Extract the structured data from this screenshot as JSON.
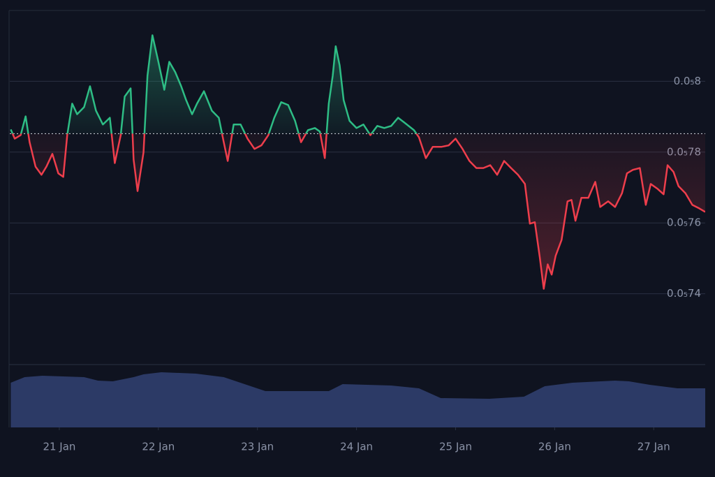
{
  "chart_data": {
    "type": "line",
    "up_color": "#2ebd85",
    "down_color": "#ee3e4c",
    "baseline": 7.852e-06,
    "grid": true,
    "xlim": [
      20.5,
      27.52
    ],
    "ylim": [
      7.2e-06,
      8.2e-06
    ],
    "xticks": [
      {
        "value": 21,
        "label": "21 Jan"
      },
      {
        "value": 22,
        "label": "22 Jan"
      },
      {
        "value": 23,
        "label": "23 Jan"
      },
      {
        "value": 24,
        "label": "24 Jan"
      },
      {
        "value": 25,
        "label": "25 Jan"
      },
      {
        "value": 26,
        "label": "26 Jan"
      },
      {
        "value": 27,
        "label": "27 Jan"
      }
    ],
    "yticks": [
      {
        "value": 8e-06,
        "label": "0.0₅8"
      },
      {
        "value": 7.8e-06,
        "label": "0.0₅78"
      },
      {
        "value": 7.6e-06,
        "label": "0.0₅76"
      },
      {
        "value": 7.4e-06,
        "label": "0.0₅74"
      }
    ],
    "x": [
      20.51,
      20.55,
      20.61,
      20.66,
      20.7,
      20.76,
      20.82,
      20.87,
      20.93,
      20.99,
      21.04,
      21.08,
      21.13,
      21.18,
      21.25,
      21.31,
      21.37,
      21.44,
      21.51,
      21.56,
      21.62,
      21.66,
      21.72,
      21.75,
      21.79,
      21.85,
      21.89,
      21.94,
      22.0,
      22.06,
      22.11,
      22.17,
      22.23,
      22.28,
      22.34,
      22.39,
      22.46,
      22.54,
      22.61,
      22.66,
      22.7,
      22.76,
      22.83,
      22.9,
      22.97,
      23.04,
      23.11,
      23.17,
      23.24,
      23.31,
      23.38,
      23.44,
      23.51,
      23.58,
      23.63,
      23.68,
      23.72,
      23.76,
      23.79,
      23.83,
      23.87,
      23.93,
      24.0,
      24.07,
      24.14,
      24.21,
      24.28,
      24.35,
      24.42,
      24.49,
      24.58,
      24.63,
      24.7,
      24.77,
      24.86,
      24.93,
      25.0,
      25.07,
      25.14,
      25.21,
      25.28,
      25.35,
      25.42,
      25.49,
      25.56,
      25.63,
      25.7,
      25.75,
      25.8,
      25.85,
      25.89,
      25.93,
      25.97,
      26.01,
      26.07,
      26.13,
      26.17,
      26.21,
      26.27,
      26.34,
      26.41,
      26.46,
      26.54,
      26.61,
      26.68,
      26.73,
      26.79,
      26.86,
      26.92,
      26.97,
      27.04,
      27.1,
      27.14,
      27.2,
      27.25,
      27.32,
      27.39,
      27.46,
      27.52
    ],
    "values": [
      7.864e-06,
      7.838e-06,
      7.848e-06,
      7.901e-06,
      7.828e-06,
      7.759e-06,
      7.736e-06,
      7.759e-06,
      7.795e-06,
      7.74e-06,
      7.73e-06,
      7.848e-06,
      7.937e-06,
      7.907e-06,
      7.927e-06,
      7.986e-06,
      7.917e-06,
      7.878e-06,
      7.897e-06,
      7.769e-06,
      7.848e-06,
      7.957e-06,
      7.98e-06,
      7.779e-06,
      7.69e-06,
      7.799e-06,
      8.016e-06,
      8.13e-06,
      8.055e-06,
      7.976e-06,
      8.055e-06,
      8.026e-06,
      7.986e-06,
      7.947e-06,
      7.907e-06,
      7.937e-06,
      7.972e-06,
      7.917e-06,
      7.897e-06,
      7.828e-06,
      7.775e-06,
      7.878e-06,
      7.878e-06,
      7.838e-06,
      7.809e-06,
      7.819e-06,
      7.848e-06,
      7.897e-06,
      7.941e-06,
      7.933e-06,
      7.888e-06,
      7.828e-06,
      7.862e-06,
      7.868e-06,
      7.858e-06,
      7.783e-06,
      7.937e-06,
      8.016e-06,
      8.099e-06,
      8.045e-06,
      7.947e-06,
      7.888e-06,
      7.868e-06,
      7.878e-06,
      7.848e-06,
      7.874e-06,
      7.868e-06,
      7.874e-06,
      7.897e-06,
      7.882e-06,
      7.862e-06,
      7.842e-06,
      7.783e-06,
      7.815e-06,
      7.815e-06,
      7.819e-06,
      7.838e-06,
      7.809e-06,
      7.775e-06,
      7.755e-06,
      7.755e-06,
      7.763e-06,
      7.736e-06,
      7.775e-06,
      7.755e-06,
      7.736e-06,
      7.71e-06,
      7.598e-06,
      7.602e-06,
      7.503e-06,
      7.414e-06,
      7.483e-06,
      7.454e-06,
      7.507e-06,
      7.552e-06,
      7.661e-06,
      7.665e-06,
      7.606e-06,
      7.671e-06,
      7.671e-06,
      7.716e-06,
      7.645e-06,
      7.661e-06,
      7.645e-06,
      7.684e-06,
      7.74e-06,
      7.75e-06,
      7.755e-06,
      7.651e-06,
      7.71e-06,
      7.696e-06,
      7.681e-06,
      7.763e-06,
      7.744e-06,
      7.704e-06,
      7.684e-06,
      7.651e-06,
      7.641e-06,
      7.631e-06
    ],
    "volume": {
      "color": "#2c3a66",
      "lim": [
        0,
        90
      ],
      "x": [
        20.51,
        20.65,
        20.83,
        21.25,
        21.39,
        21.54,
        21.75,
        21.85,
        22.03,
        22.38,
        22.66,
        22.87,
        23.08,
        23.72,
        23.86,
        24.35,
        24.63,
        24.85,
        25.34,
        25.69,
        25.9,
        26.18,
        26.61,
        26.75,
        26.96,
        27.24,
        27.52
      ],
      "values": [
        64,
        72,
        74,
        72,
        67,
        66,
        72,
        76,
        79,
        77,
        72,
        62,
        52,
        52,
        62,
        60,
        56,
        42,
        41,
        44,
        59,
        64,
        67,
        66,
        61,
        56,
        56
      ]
    }
  }
}
